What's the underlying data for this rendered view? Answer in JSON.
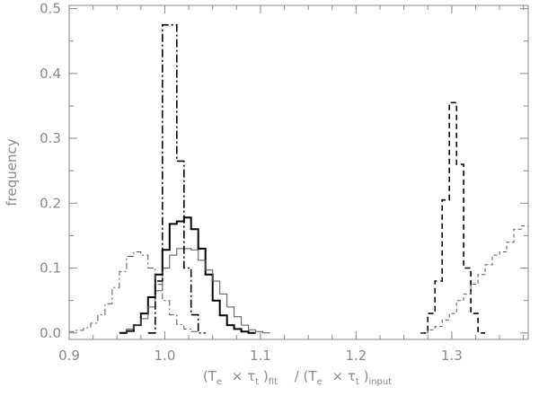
{
  "chart_data": {
    "type": "line",
    "xlim": [
      0.9,
      1.38
    ],
    "ylim": [
      -0.01,
      0.505
    ],
    "xticks": [
      {
        "value": 0.9,
        "label": "0.9"
      },
      {
        "value": 1.0,
        "label": "1.0"
      },
      {
        "value": 1.1,
        "label": "1.1"
      },
      {
        "value": 1.2,
        "label": "1.2"
      },
      {
        "value": 1.3,
        "label": "1.3"
      }
    ],
    "yticks": [
      {
        "value": 0.0,
        "label": "0.0"
      },
      {
        "value": 0.1,
        "label": "0.1"
      },
      {
        "value": 0.2,
        "label": "0.2"
      },
      {
        "value": 0.3,
        "label": "0.3"
      },
      {
        "value": 0.4,
        "label": "0.4"
      },
      {
        "value": 0.5,
        "label": "0.5"
      }
    ],
    "xlabel": {
      "p1": "(T",
      "p1_sub": "e",
      "p2": "× τ",
      "p2_sub": "t",
      "p3": ")",
      "p3_sub": "fit",
      "p4": "/ (T",
      "p4_sub": "e",
      "p5": "× τ",
      "p5_sub": "t",
      "p6": ")",
      "p6_sub": "input"
    },
    "ylabel": "frequency",
    "grid": false,
    "bin_width": 0.0075,
    "series": [
      {
        "style": "solid-thick",
        "color": "#000000",
        "edges_start": 0.9525,
        "values": [
          0.0,
          0.003,
          0.012,
          0.03,
          0.055,
          0.09,
          0.128,
          0.168,
          0.172,
          0.178,
          0.16,
          0.13,
          0.09,
          0.05,
          0.027,
          0.012,
          0.006,
          0.002,
          0.0
        ]
      },
      {
        "style": "solid-thin",
        "color": "#555555",
        "edges_start": 0.96,
        "values": [
          0.006,
          0.012,
          0.022,
          0.04,
          0.065,
          0.1,
          0.12,
          0.13,
          0.13,
          0.128,
          0.112,
          0.097,
          0.08,
          0.06,
          0.04,
          0.025,
          0.012,
          0.005,
          0.002,
          0.0
        ]
      },
      {
        "style": "dash-dot-thick",
        "color": "#000000",
        "edges_start": 0.9825,
        "values": [
          0.0,
          0.08,
          0.475,
          0.475,
          0.265,
          0.1,
          0.028,
          0.0
        ]
      },
      {
        "style": "dash-dot-thin",
        "color": "#555555",
        "edges_start": 0.9,
        "values": [
          0.002,
          0.004,
          0.008,
          0.015,
          0.028,
          0.045,
          0.07,
          0.095,
          0.118,
          0.125,
          0.12,
          0.1,
          0.075,
          0.05,
          0.028,
          0.013,
          0.006,
          0.002,
          0.0
        ]
      },
      {
        "style": "dashed-thick",
        "color": "#000000",
        "edges_start": 1.2675,
        "values": [
          0.0,
          0.03,
          0.08,
          0.205,
          0.355,
          0.26,
          0.1,
          0.03,
          0.0
        ]
      },
      {
        "style": "dashed-thin",
        "color": "#555555",
        "edges_start": 1.2675,
        "values": [
          0.0,
          0.005,
          0.01,
          0.02,
          0.03,
          0.05,
          0.06,
          0.075,
          0.09,
          0.105,
          0.12,
          0.125,
          0.14,
          0.16,
          0.165
        ]
      }
    ]
  }
}
